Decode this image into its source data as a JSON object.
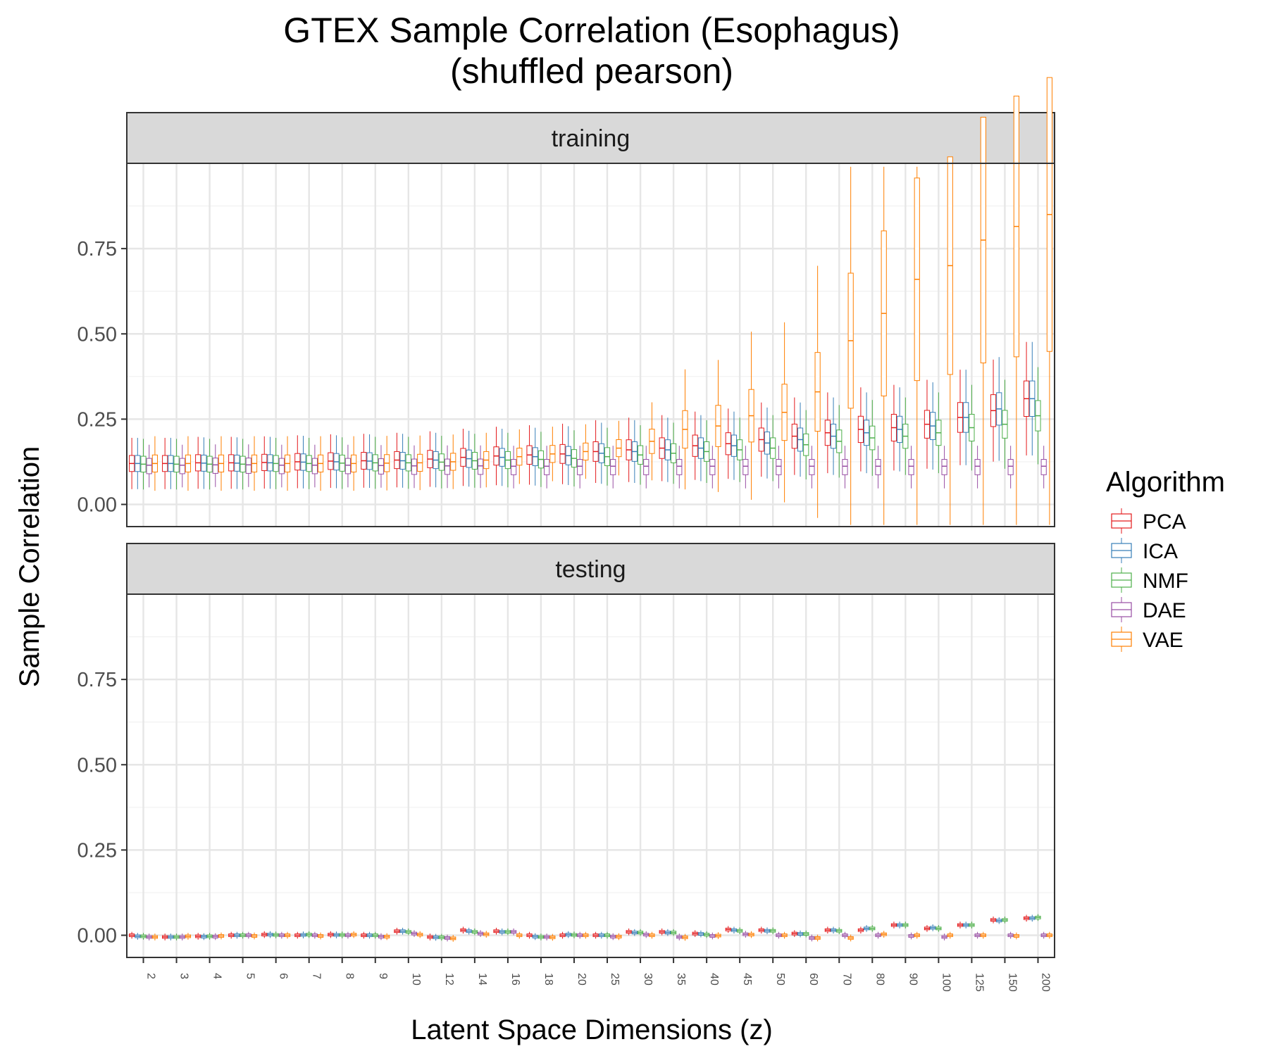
{
  "chart_data": {
    "type": "box",
    "title": "GTEX Sample Correlation (Esophagus)",
    "subtitle": "(shuffled pearson)",
    "xlabel": "Latent Space Dimensions (z)",
    "ylabel": "Sample Correlation",
    "ylim": [
      -0.065,
      1.0
    ],
    "yticks": [
      "0.00",
      "0.25",
      "0.50",
      "0.75"
    ],
    "ytick_values": [
      0,
      0.25,
      0.5,
      0.75
    ],
    "grid": true,
    "categories": [
      "2",
      "3",
      "4",
      "5",
      "6",
      "7",
      "8",
      "9",
      "10",
      "12",
      "14",
      "16",
      "18",
      "20",
      "25",
      "30",
      "35",
      "40",
      "45",
      "50",
      "60",
      "70",
      "80",
      "90",
      "100",
      "125",
      "150",
      "200"
    ],
    "legend": {
      "title": "Algorithm",
      "position": "right",
      "entries": [
        "PCA",
        "ICA",
        "NMF",
        "DAE",
        "VAE"
      ]
    },
    "colors": {
      "PCA": "#e41a1c",
      "ICA": "#377eb8",
      "NMF": "#4daf4a",
      "DAE": "#984ea3",
      "VAE": "#ff7f00"
    },
    "panels": [
      {
        "label": "training",
        "series": [
          {
            "name": "PCA",
            "median": [
              0.12,
              0.12,
              0.122,
              0.122,
              0.123,
              0.125,
              0.127,
              0.128,
              0.13,
              0.133,
              0.138,
              0.142,
              0.145,
              0.148,
              0.155,
              0.16,
              0.165,
              0.172,
              0.178,
              0.19,
              0.2,
              0.21,
              0.22,
              0.225,
              0.235,
              0.255,
              0.275,
              0.31
            ]
          },
          {
            "name": "ICA",
            "median": [
              0.12,
              0.12,
              0.121,
              0.121,
              0.122,
              0.124,
              0.125,
              0.127,
              0.128,
              0.13,
              0.134,
              0.138,
              0.14,
              0.143,
              0.15,
              0.155,
              0.16,
              0.165,
              0.172,
              0.18,
              0.19,
              0.2,
              0.21,
              0.22,
              0.23,
              0.255,
              0.28,
              0.31
            ]
          },
          {
            "name": "NMF",
            "median": [
              0.118,
              0.118,
              0.118,
              0.118,
              0.12,
              0.12,
              0.121,
              0.122,
              0.122,
              0.124,
              0.128,
              0.13,
              0.132,
              0.135,
              0.14,
              0.145,
              0.15,
              0.155,
              0.16,
              0.165,
              0.175,
              0.185,
              0.195,
              0.2,
              0.21,
              0.225,
              0.235,
              0.26
            ]
          },
          {
            "name": "DAE",
            "median": [
              0.115,
              0.115,
              0.116,
              0.116,
              0.115,
              0.115,
              0.115,
              0.114,
              0.113,
              0.113,
              0.113,
              0.112,
              0.112,
              0.112,
              0.112,
              0.112,
              0.112,
              0.112,
              0.112,
              0.112,
              0.112,
              0.112,
              0.112,
              0.112,
              0.112,
              0.112,
              0.112,
              0.112
            ]
          },
          {
            "name": "VAE",
            "median": [
              0.12,
              0.12,
              0.12,
              0.12,
              0.12,
              0.12,
              0.12,
              0.121,
              0.122,
              0.125,
              0.13,
              0.14,
              0.148,
              0.155,
              0.165,
              0.185,
              0.22,
              0.23,
              0.26,
              0.27,
              0.33,
              0.48,
              0.56,
              0.66,
              0.7,
              0.775,
              0.815,
              0.85
            ]
          }
        ]
      },
      {
        "label": "testing",
        "series": [
          {
            "name": "PCA",
            "median": [
              0.0,
              -0.005,
              -0.003,
              0.0,
              0.002,
              0.0,
              0.002,
              0.0,
              0.012,
              -0.005,
              0.015,
              0.012,
              0.0,
              0.0,
              0.0,
              0.01,
              0.01,
              0.005,
              0.017,
              0.015,
              0.005,
              0.015,
              0.015,
              0.03,
              0.02,
              0.03,
              0.045,
              0.05
            ]
          },
          {
            "name": "ICA",
            "median": [
              -0.003,
              -0.005,
              -0.004,
              0.0,
              0.002,
              0.001,
              0.001,
              0.0,
              0.012,
              -0.006,
              0.012,
              0.01,
              -0.004,
              0.002,
              0.0,
              0.008,
              0.008,
              0.004,
              0.015,
              0.013,
              0.004,
              0.015,
              0.02,
              0.03,
              0.022,
              0.03,
              0.043,
              0.05
            ]
          },
          {
            "name": "NMF",
            "median": [
              -0.003,
              -0.005,
              -0.003,
              0.0,
              0.001,
              0.002,
              0.001,
              0.0,
              0.01,
              -0.006,
              0.01,
              0.01,
              -0.005,
              0.001,
              0.0,
              0.008,
              0.008,
              0.002,
              0.013,
              0.013,
              0.004,
              0.013,
              0.02,
              0.03,
              0.02,
              0.03,
              0.045,
              0.052
            ]
          },
          {
            "name": "DAE",
            "median": [
              -0.005,
              -0.005,
              -0.004,
              0.0,
              0.0,
              0.0,
              0.0,
              -0.004,
              0.005,
              -0.008,
              0.005,
              0.01,
              -0.005,
              0.0,
              -0.004,
              0.002,
              -0.005,
              -0.002,
              0.003,
              0.0,
              -0.008,
              0.0,
              0.0,
              -0.002,
              -0.005,
              0.0,
              0.0,
              0.0
            ]
          },
          {
            "name": "VAE",
            "median": [
              -0.005,
              -0.003,
              -0.002,
              -0.002,
              0.0,
              -0.002,
              0.002,
              -0.004,
              0.002,
              -0.009,
              0.003,
              0.0,
              -0.006,
              0.0,
              -0.004,
              0.0,
              -0.006,
              -0.001,
              0.002,
              0.0,
              -0.008,
              -0.008,
              0.003,
              0.0,
              0.0,
              0.0,
              -0.002,
              0.0
            ]
          }
        ]
      }
    ]
  }
}
